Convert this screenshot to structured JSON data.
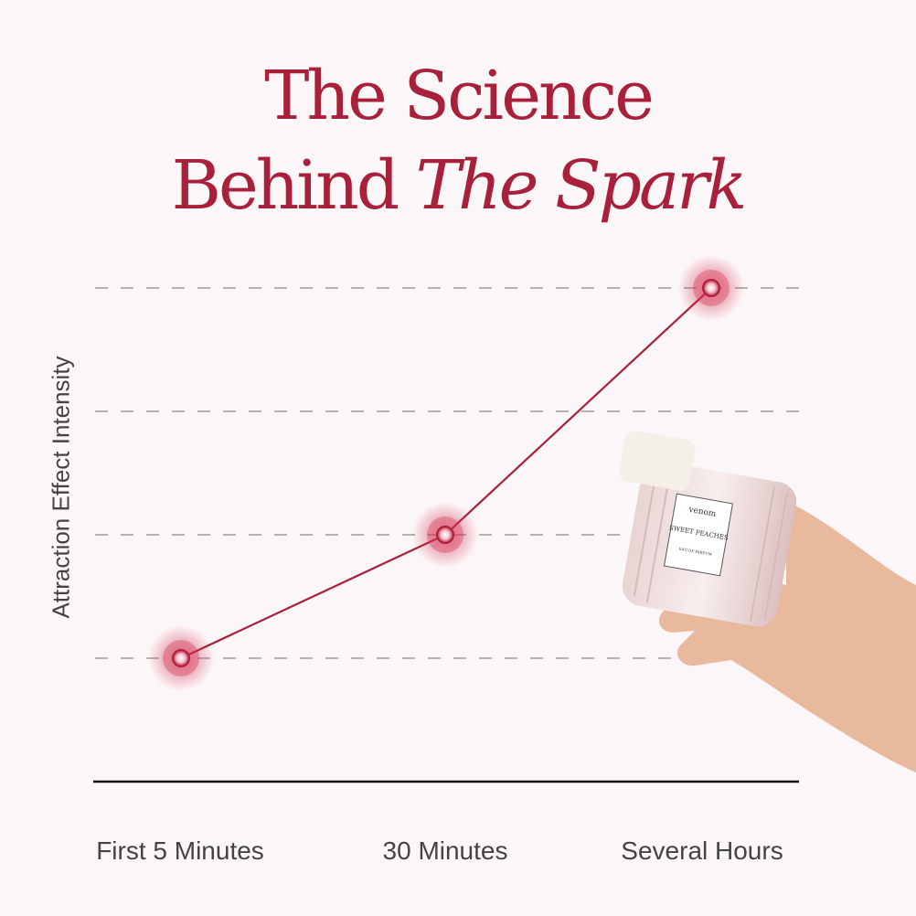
{
  "chart_data": {
    "type": "line",
    "title_line1": "The Science",
    "title_line2_plain": "Behind",
    "title_line2_italic": "The Spark",
    "ylabel": "Attraction Effect Intensity",
    "xlabel": "",
    "categories": [
      "First 5 Minutes",
      "30 Minutes",
      "Several Hours"
    ],
    "values": [
      1,
      2,
      4
    ],
    "ylim": [
      0,
      4
    ],
    "grid": true,
    "y_ticks_labeled": false,
    "colors": {
      "line": "#a8203a",
      "title": "#a8203a",
      "grid": "#8a8a8a",
      "axis": "#111111"
    }
  },
  "product": {
    "brand": "venom",
    "name": "SWEET PEACHES",
    "type": "EAU DE PARFUM"
  }
}
